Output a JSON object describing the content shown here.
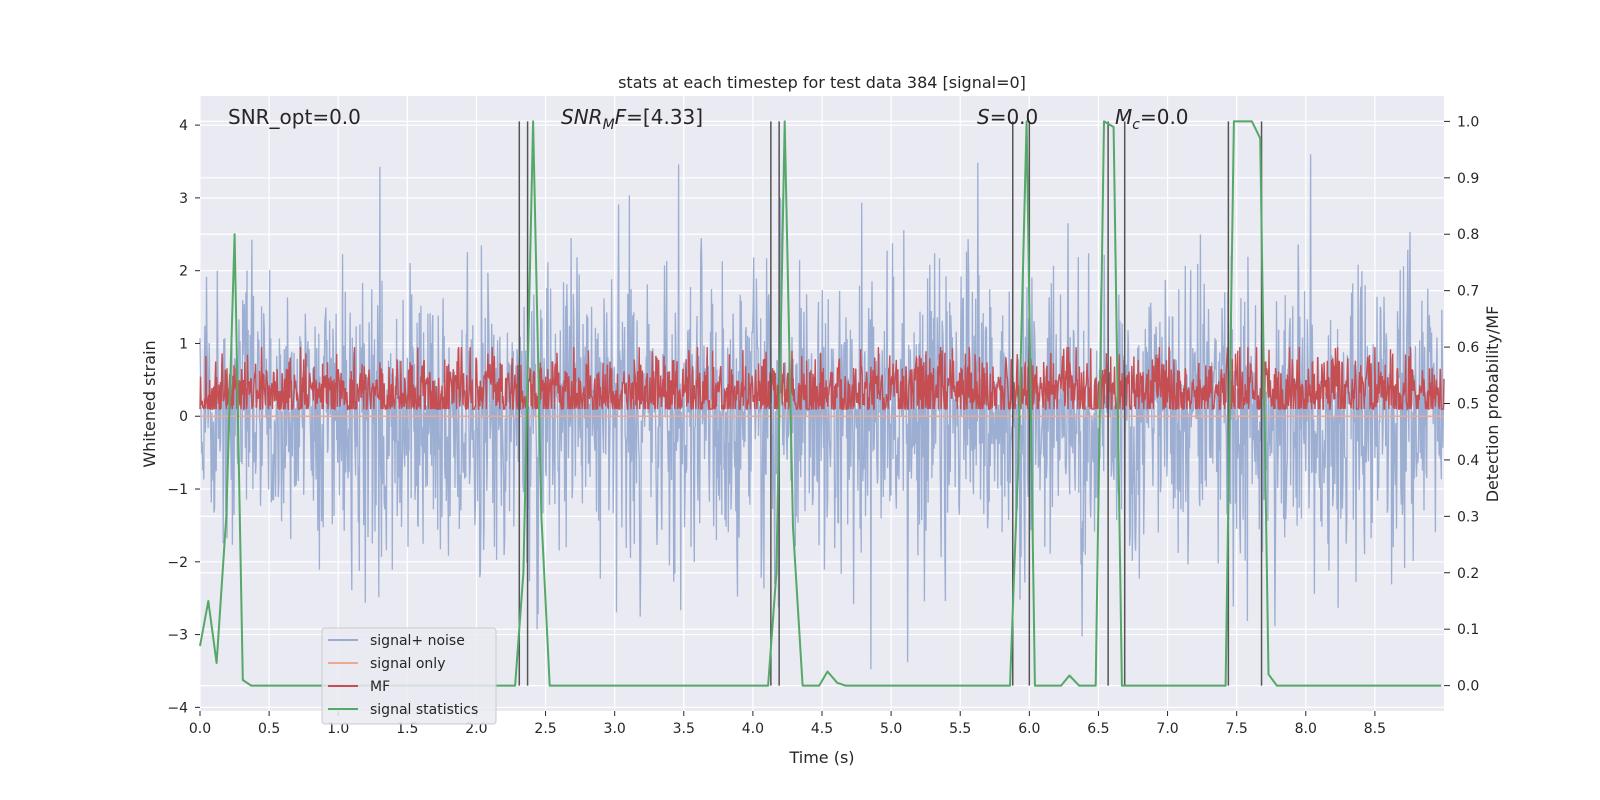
{
  "chart_data": {
    "type": "line",
    "title": "stats at each timestep for test data 384 [signal=0]",
    "xlabel": "Time (s)",
    "ylabel": "Whitened strain",
    "y2label": "Detection probability/MF",
    "xlim": [
      0,
      9.0
    ],
    "ylim": [
      -4.05,
      4.4
    ],
    "y2lim": [
      -0.045,
      1.045
    ],
    "xticks": [
      0.0,
      0.5,
      1.0,
      1.5,
      2.0,
      2.5,
      3.0,
      3.5,
      4.0,
      4.5,
      5.0,
      5.5,
      6.0,
      6.5,
      7.0,
      7.5,
      8.0,
      8.5
    ],
    "xtick_labels": [
      "0.0",
      "0.5",
      "1.0",
      "1.5",
      "2.0",
      "2.5",
      "3.0",
      "3.5",
      "4.0",
      "4.5",
      "5.0",
      "5.5",
      "6.0",
      "6.5",
      "7.0",
      "7.5",
      "8.0",
      "8.5"
    ],
    "yticks": [
      -4,
      -3,
      -2,
      -1,
      0,
      1,
      2,
      3,
      4
    ],
    "ytick_labels": [
      "−4",
      "−3",
      "−2",
      "−1",
      "0",
      "1",
      "2",
      "3",
      "4"
    ],
    "y2ticks": [
      0.0,
      0.1,
      0.2,
      0.3,
      0.4,
      0.5,
      0.6,
      0.7,
      0.8,
      0.9,
      1.0
    ],
    "y2tick_labels": [
      "0.0",
      "0.1",
      "0.2",
      "0.3",
      "0.4",
      "0.5",
      "0.6",
      "0.7",
      "0.8",
      "0.9",
      "1.0"
    ],
    "grid": true,
    "legend_position": "lower-left",
    "annotations": {
      "snr_opt": "SNR_opt=0.0",
      "snr_mf_italic": "SNR",
      "snr_mf_sub": "M",
      "snr_mf_italic2": "F",
      "snr_mf_value": "=[4.33]",
      "s_italic": "S",
      "s_value": "=0.0",
      "mc_italic": "M",
      "mc_sub": "c",
      "mc_value": "=0.0"
    },
    "series": [
      {
        "name": "signal+ noise",
        "color": "#98abd0",
        "style": "noise",
        "amplitude_std": 1.0,
        "sample_rate": 256
      },
      {
        "name": "signal only",
        "color": "#eea98f",
        "style": "line",
        "x": [
          0,
          9.0
        ],
        "y": [
          0,
          0
        ]
      },
      {
        "name": "MF",
        "color": "#c44e52",
        "style": "band",
        "axis": "right",
        "mean": 0.52,
        "spread": 0.035,
        "sample_rate": 256
      },
      {
        "name": "signal statistics",
        "color": "#55a868",
        "style": "line",
        "axis": "right",
        "x": [
          0.0,
          0.06,
          0.12,
          0.19,
          0.25,
          0.31,
          0.37,
          0.44,
          2.28,
          2.34,
          2.41,
          2.47,
          2.53,
          2.59,
          4.11,
          4.17,
          4.23,
          4.29,
          4.36,
          4.42,
          4.48,
          4.54,
          4.61,
          4.67,
          5.86,
          5.92,
          5.98,
          6.04,
          6.11,
          6.17,
          6.23,
          6.29,
          6.36,
          6.42,
          6.48,
          6.54,
          6.61,
          6.67,
          6.73,
          6.79,
          7.42,
          7.48,
          7.54,
          7.61,
          7.67,
          7.73,
          7.79,
          7.86,
          8.98
        ],
        "y": [
          0.07,
          0.15,
          0.04,
          0.3,
          0.8,
          0.01,
          0.0,
          0.0,
          0.0,
          0.2,
          1.0,
          0.3,
          0.0,
          0.0,
          0.0,
          0.2,
          1.0,
          0.28,
          0.0,
          0.0,
          0.0,
          0.025,
          0.005,
          0.0,
          0.0,
          0.4,
          1.0,
          0.0,
          0.0,
          0.0,
          0.0,
          0.018,
          0.0,
          0.0,
          0.0,
          1.0,
          0.99,
          0.0,
          0.0,
          0.0,
          0.0,
          1.0,
          1.0,
          1.0,
          0.97,
          0.02,
          0.0,
          0.0,
          0.0
        ]
      }
    ],
    "vertical_lines": [
      2.31,
      2.37,
      4.13,
      4.19,
      5.88,
      6.0,
      6.57,
      6.69,
      7.44,
      7.68
    ],
    "vertical_line_color": "#555555"
  }
}
